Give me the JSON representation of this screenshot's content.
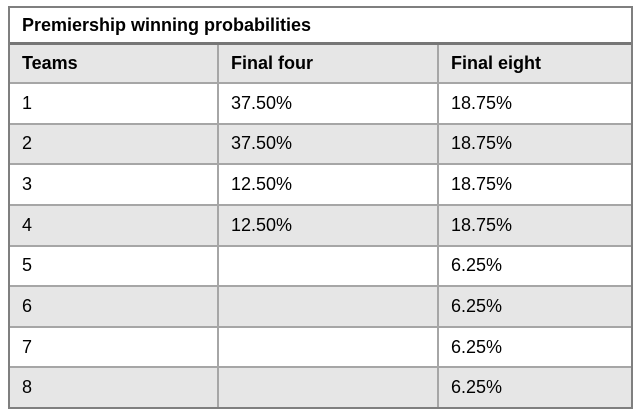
{
  "title": "Premiership winning probabilities",
  "table": {
    "columns": {
      "teams": "Teams",
      "final_four": "Final four",
      "final_eight": "Final eight"
    },
    "rows": [
      {
        "team": "1",
        "final_four": "37.50%",
        "final_eight": "18.75%"
      },
      {
        "team": "2",
        "final_four": "37.50%",
        "final_eight": "18.75%"
      },
      {
        "team": "3",
        "final_four": "12.50%",
        "final_eight": "18.75%"
      },
      {
        "team": "4",
        "final_four": "12.50%",
        "final_eight": "18.75%"
      },
      {
        "team": "5",
        "final_four": "",
        "final_eight": "6.25%"
      },
      {
        "team": "6",
        "final_four": "",
        "final_eight": "6.25%"
      },
      {
        "team": "7",
        "final_four": "",
        "final_eight": "6.25%"
      },
      {
        "team": "8",
        "final_four": "",
        "final_eight": "6.25%"
      }
    ]
  },
  "colors": {
    "shaded_row_fill": "#e6e6e6",
    "outer_border": "#7f7f7f",
    "title_divider": "#767676",
    "inner_border": "#a6a6a6",
    "text": "#000000",
    "background": "#ffffff"
  }
}
